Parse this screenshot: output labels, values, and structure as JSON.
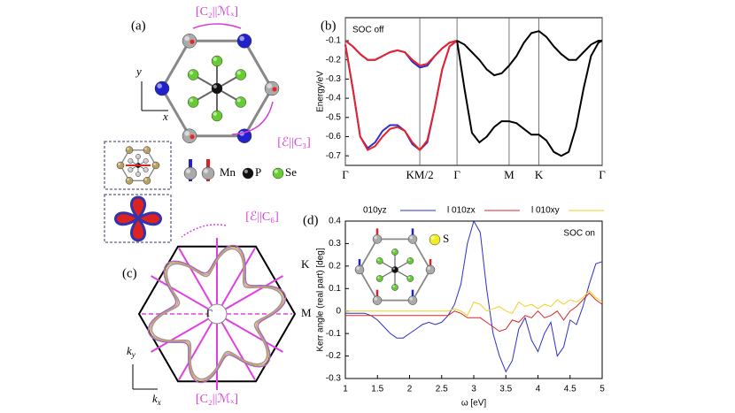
{
  "figure": {
    "a": {
      "label": "(a)",
      "op_top": "[C₂||ℳₓ]",
      "op_side": "[ℰ||C₃]",
      "axis_y": "y",
      "axis_x": "x",
      "legend": [
        "Mn",
        "P",
        "Se"
      ]
    },
    "b": {
      "label": "(b)"
    },
    "c": {
      "label": "(c)",
      "op_top": "[ℰ||C₆]",
      "op_bottom": "[C₂||ℳₓ]",
      "point_k": "K",
      "point_m": "M",
      "point_gamma": "Γ",
      "axis_y": [
        "k",
        "y"
      ],
      "axis_x": [
        "k",
        "x"
      ]
    },
    "d": {
      "label": "(d)",
      "inset_label": "S"
    }
  },
  "chart_data": [
    {
      "type": "line",
      "annotation": "SOC off",
      "annotation_position": "top-left",
      "y_label": "Energy/eV",
      "xgrid": true,
      "x": [
        0,
        0.1,
        0.2,
        0.3,
        0.4,
        0.5,
        0.6,
        0.7,
        0.8,
        0.9,
        1.0,
        1.1,
        1.2,
        1.3,
        1.4,
        1.5,
        1.6,
        1.7,
        1.8,
        1.9,
        2.0,
        2.1,
        2.2,
        2.3,
        2.4,
        2.5,
        2.6,
        2.7,
        2.8,
        2.9,
        3.0,
        3.1,
        3.2,
        3.3,
        3.4,
        3.45
      ],
      "xlim": [
        0,
        3.45
      ],
      "xticks": [
        {
          "value": 0,
          "label": "Γ"
        },
        {
          "value": 1.0,
          "label": "KM/2"
        },
        {
          "value": 1.5,
          "label": "Γ"
        },
        {
          "value": 2.2,
          "label": "M"
        },
        {
          "value": 2.6,
          "label": "K"
        },
        {
          "value": 3.45,
          "label": "Γ"
        }
      ],
      "ylim": [
        -0.75,
        0.02
      ],
      "yticks": [
        -0.7,
        -0.6,
        -0.5,
        -0.4,
        -0.3,
        -0.2,
        -0.1
      ],
      "series": [
        {
          "color": "#2b2bd4",
          "values": [
            -0.1,
            -0.13,
            -0.17,
            -0.2,
            -0.2,
            -0.18,
            -0.16,
            -0.15,
            -0.16,
            -0.21,
            -0.24,
            -0.23,
            -0.18,
            -0.14,
            -0.11,
            -0.1,
            null,
            null,
            null,
            null,
            null,
            null,
            null,
            null,
            null,
            null,
            null,
            null,
            null,
            null,
            null,
            null,
            null,
            null,
            null,
            null
          ]
        },
        {
          "color": "#2b2bd4",
          "values": [
            -0.12,
            -0.35,
            -0.6,
            -0.66,
            -0.63,
            -0.57,
            -0.54,
            -0.54,
            -0.57,
            -0.64,
            -0.67,
            -0.63,
            -0.45,
            -0.25,
            -0.13,
            -0.1,
            null,
            null,
            null,
            null,
            null,
            null,
            null,
            null,
            null,
            null,
            null,
            null,
            null,
            null,
            null,
            null,
            null,
            null,
            null,
            null
          ]
        },
        {
          "color": "#e8232b",
          "values": [
            -0.1,
            -0.13,
            -0.17,
            -0.2,
            -0.2,
            -0.18,
            -0.16,
            -0.15,
            -0.16,
            -0.2,
            -0.23,
            -0.22,
            -0.18,
            -0.14,
            -0.11,
            -0.1,
            null,
            null,
            null,
            null,
            null,
            null,
            null,
            null,
            null,
            null,
            null,
            null,
            null,
            null,
            null,
            null,
            null,
            null,
            null,
            null
          ]
        },
        {
          "color": "#e8232b",
          "values": [
            -0.12,
            -0.35,
            -0.6,
            -0.67,
            -0.65,
            -0.6,
            -0.56,
            -0.55,
            -0.57,
            -0.63,
            -0.67,
            -0.62,
            -0.45,
            -0.25,
            -0.13,
            -0.1,
            null,
            null,
            null,
            null,
            null,
            null,
            null,
            null,
            null,
            null,
            null,
            null,
            null,
            null,
            null,
            null,
            null,
            null,
            null,
            null
          ]
        },
        {
          "color": "#000000",
          "values": [
            null,
            null,
            null,
            null,
            null,
            null,
            null,
            null,
            null,
            null,
            null,
            null,
            null,
            null,
            null,
            -0.1,
            -0.12,
            -0.16,
            -0.2,
            -0.25,
            -0.28,
            -0.27,
            -0.23,
            -0.18,
            -0.11,
            -0.06,
            -0.05,
            -0.08,
            -0.13,
            -0.17,
            -0.2,
            -0.2,
            -0.16,
            -0.12,
            -0.1,
            -0.1
          ]
        },
        {
          "color": "#000000",
          "values": [
            null,
            null,
            null,
            null,
            null,
            null,
            null,
            null,
            null,
            null,
            null,
            null,
            null,
            null,
            null,
            -0.1,
            -0.35,
            -0.58,
            -0.63,
            -0.6,
            -0.55,
            -0.52,
            -0.52,
            -0.53,
            -0.56,
            -0.59,
            -0.59,
            -0.62,
            -0.68,
            -0.7,
            -0.68,
            -0.55,
            -0.35,
            -0.18,
            -0.11,
            -0.1
          ]
        }
      ]
    },
    {
      "type": "line",
      "annotation": "SOC on",
      "annotation_position": "top-right",
      "x_label": "ω [eV]",
      "y_label": "Kerr angle (real part) [deg]",
      "legend": "top",
      "x": [
        1.0,
        1.1,
        1.2,
        1.3,
        1.4,
        1.5,
        1.6,
        1.7,
        1.8,
        1.9,
        2.0,
        2.1,
        2.2,
        2.3,
        2.4,
        2.5,
        2.6,
        2.7,
        2.8,
        2.9,
        3.0,
        3.1,
        3.2,
        3.3,
        3.4,
        3.5,
        3.6,
        3.7,
        3.8,
        3.9,
        4.0,
        4.1,
        4.2,
        4.3,
        4.4,
        4.5,
        4.6,
        4.7,
        4.8,
        4.9,
        5.0
      ],
      "xlim": [
        1,
        5
      ],
      "xticks": [
        1,
        1.5,
        2,
        2.5,
        3,
        3.5,
        4,
        4.5,
        5
      ],
      "ylim": [
        -0.3,
        0.4
      ],
      "yticks": [
        -0.3,
        -0.2,
        -0.1,
        0,
        0.1,
        0.2,
        0.3,
        0.4
      ],
      "series": [
        {
          "name": "010yz",
          "color": "#2f2fc8",
          "values": [
            -0.01,
            -0.01,
            -0.01,
            -0.01,
            -0.02,
            -0.04,
            -0.07,
            -0.1,
            -0.12,
            -0.12,
            -0.1,
            -0.08,
            -0.06,
            -0.05,
            -0.06,
            -0.05,
            -0.02,
            0.03,
            0.12,
            0.3,
            0.4,
            0.35,
            0.1,
            -0.1,
            -0.2,
            -0.27,
            -0.22,
            -0.08,
            -0.03,
            -0.13,
            -0.18,
            -0.1,
            -0.05,
            -0.2,
            -0.16,
            -0.04,
            -0.06,
            0.02,
            0.12,
            0.21,
            0.22
          ]
        },
        {
          "name": "l 010zx",
          "color": "#d8262a",
          "values": [
            -0.02,
            -0.02,
            -0.02,
            -0.02,
            -0.02,
            -0.02,
            -0.02,
            -0.02,
            -0.02,
            -0.02,
            -0.02,
            -0.02,
            -0.02,
            -0.02,
            -0.02,
            -0.02,
            -0.02,
            0.0,
            -0.01,
            -0.03,
            -0.03,
            -0.03,
            -0.05,
            -0.07,
            -0.09,
            -0.08,
            -0.04,
            -0.05,
            -0.02,
            -0.03,
            0.0,
            -0.03,
            -0.02,
            0.0,
            -0.04,
            0.0,
            0.02,
            0.05,
            0.08,
            0.05,
            0.03
          ]
        },
        {
          "name": "l 010xy",
          "color": "#f0d020",
          "values": [
            0.0,
            0.0,
            0.0,
            0.0,
            0.0,
            0.0,
            0.0,
            0.0,
            0.0,
            0.0,
            0.0,
            0.0,
            0.0,
            0.0,
            0.0,
            0.0,
            0.0,
            0.01,
            0.0,
            -0.02,
            0.04,
            0.03,
            0.0,
            0.01,
            0.02,
            0.0,
            -0.01,
            0.04,
            0.02,
            0.03,
            0.01,
            0.03,
            0.02,
            0.05,
            0.03,
            0.05,
            0.04,
            0.06,
            0.09,
            0.06,
            0.04
          ]
        }
      ]
    }
  ]
}
